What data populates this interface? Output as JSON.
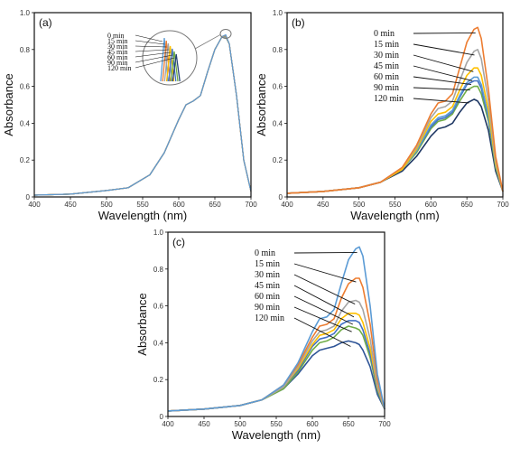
{
  "figure": {
    "panels": [
      {
        "id": "a",
        "label": "(a)"
      },
      {
        "id": "b",
        "label": "(b)"
      },
      {
        "id": "c",
        "label": "(c)"
      }
    ]
  },
  "chart_data": [
    {
      "panel": "(a)",
      "type": "line",
      "xlabel": "Wavelength (nm)",
      "ylabel": "Absorbance",
      "xlim": [
        400,
        700
      ],
      "ylim": [
        0,
        1.0
      ],
      "xticks": [
        400,
        450,
        500,
        550,
        600,
        650,
        700
      ],
      "yticks": [
        0,
        0.2,
        0.4,
        0.6,
        0.8,
        1.0
      ],
      "ytick_labels": [
        "0",
        "0.2",
        "0.4",
        "0.6",
        "0.8",
        "1.0"
      ],
      "grid": false,
      "legend_labels": [
        "0 min",
        "15 min",
        "30 min",
        "45 min",
        "60 min",
        "90 min",
        "120 min"
      ],
      "x": [
        400,
        450,
        500,
        530,
        560,
        580,
        600,
        610,
        620,
        630,
        640,
        650,
        660,
        665,
        670,
        680,
        690,
        700
      ],
      "series": [
        {
          "color": "#5b9bd5",
          "y": [
            0.01,
            0.015,
            0.035,
            0.05,
            0.12,
            0.24,
            0.42,
            0.5,
            0.52,
            0.55,
            0.68,
            0.8,
            0.87,
            0.88,
            0.83,
            0.55,
            0.2,
            0.03
          ]
        },
        {
          "color": "#ed7d31",
          "y": [
            0.01,
            0.015,
            0.035,
            0.05,
            0.12,
            0.24,
            0.42,
            0.5,
            0.52,
            0.55,
            0.68,
            0.8,
            0.87,
            0.878,
            0.83,
            0.55,
            0.2,
            0.03
          ]
        },
        {
          "color": "#a5a5a5",
          "y": [
            0.01,
            0.015,
            0.035,
            0.05,
            0.12,
            0.24,
            0.42,
            0.5,
            0.52,
            0.55,
            0.68,
            0.8,
            0.87,
            0.876,
            0.83,
            0.55,
            0.2,
            0.03
          ]
        },
        {
          "color": "#ffc000",
          "y": [
            0.01,
            0.015,
            0.035,
            0.05,
            0.12,
            0.24,
            0.42,
            0.5,
            0.52,
            0.55,
            0.68,
            0.8,
            0.87,
            0.874,
            0.83,
            0.55,
            0.2,
            0.03
          ]
        },
        {
          "color": "#4472c4",
          "y": [
            0.01,
            0.015,
            0.035,
            0.05,
            0.12,
            0.24,
            0.42,
            0.5,
            0.52,
            0.55,
            0.68,
            0.8,
            0.87,
            0.872,
            0.83,
            0.55,
            0.2,
            0.03
          ]
        },
        {
          "color": "#70ad47",
          "y": [
            0.01,
            0.015,
            0.035,
            0.05,
            0.12,
            0.24,
            0.42,
            0.5,
            0.52,
            0.55,
            0.68,
            0.8,
            0.87,
            0.87,
            0.83,
            0.55,
            0.2,
            0.03
          ]
        },
        {
          "color": "#264478",
          "y": [
            0.01,
            0.015,
            0.035,
            0.05,
            0.12,
            0.24,
            0.42,
            0.5,
            0.52,
            0.55,
            0.68,
            0.8,
            0.87,
            0.868,
            0.83,
            0.55,
            0.2,
            0.03
          ]
        }
      ]
    },
    {
      "panel": "(b)",
      "type": "line",
      "xlabel": "Wavelength (nm)",
      "ylabel": "Absorbance",
      "xlim": [
        400,
        700
      ],
      "ylim": [
        0,
        1.0
      ],
      "xticks": [
        400,
        450,
        500,
        550,
        600,
        650,
        700
      ],
      "yticks": [
        0,
        0.2,
        0.4,
        0.6,
        0.8,
        1.0
      ],
      "ytick_labels": [
        "0",
        "0.2",
        "0.4",
        "0.6",
        "0.8",
        "1.0"
      ],
      "grid": false,
      "legend_labels": [
        "0 min",
        "15 min",
        "30 min",
        "45 min",
        "60 min",
        "90 min",
        "120 min"
      ],
      "x": [
        400,
        450,
        500,
        530,
        560,
        580,
        600,
        610,
        620,
        630,
        640,
        650,
        660,
        665,
        670,
        680,
        690,
        700
      ],
      "series": [
        {
          "color": "#ed7d31",
          "y": [
            0.02,
            0.03,
            0.05,
            0.08,
            0.16,
            0.28,
            0.45,
            0.51,
            0.52,
            0.56,
            0.7,
            0.84,
            0.91,
            0.92,
            0.86,
            0.58,
            0.22,
            0.03
          ]
        },
        {
          "color": "#a5a5a5",
          "y": [
            0.02,
            0.03,
            0.05,
            0.08,
            0.16,
            0.27,
            0.43,
            0.48,
            0.49,
            0.52,
            0.63,
            0.73,
            0.79,
            0.8,
            0.75,
            0.52,
            0.2,
            0.03
          ]
        },
        {
          "color": "#ffc000",
          "y": [
            0.02,
            0.03,
            0.05,
            0.08,
            0.15,
            0.26,
            0.41,
            0.45,
            0.46,
            0.49,
            0.58,
            0.66,
            0.7,
            0.7,
            0.66,
            0.47,
            0.18,
            0.03
          ]
        },
        {
          "color": "#5b9bd5",
          "y": [
            0.02,
            0.03,
            0.05,
            0.08,
            0.15,
            0.25,
            0.39,
            0.43,
            0.44,
            0.47,
            0.55,
            0.62,
            0.65,
            0.65,
            0.61,
            0.44,
            0.17,
            0.03
          ]
        },
        {
          "color": "#4472c4",
          "y": [
            0.02,
            0.03,
            0.05,
            0.08,
            0.15,
            0.25,
            0.38,
            0.42,
            0.43,
            0.46,
            0.54,
            0.61,
            0.63,
            0.63,
            0.59,
            0.43,
            0.17,
            0.03
          ]
        },
        {
          "color": "#70ad47",
          "y": [
            0.02,
            0.03,
            0.05,
            0.08,
            0.15,
            0.24,
            0.37,
            0.41,
            0.42,
            0.45,
            0.52,
            0.58,
            0.6,
            0.6,
            0.56,
            0.41,
            0.16,
            0.03
          ]
        },
        {
          "color": "#1f3864",
          "y": [
            0.02,
            0.03,
            0.05,
            0.08,
            0.14,
            0.22,
            0.33,
            0.37,
            0.38,
            0.4,
            0.46,
            0.51,
            0.53,
            0.52,
            0.49,
            0.36,
            0.14,
            0.03
          ]
        }
      ]
    },
    {
      "panel": "(c)",
      "type": "line",
      "xlabel": "Wavelength (nm)",
      "ylabel": "Absorbance",
      "xlim": [
        400,
        700
      ],
      "ylim": [
        0,
        1.0
      ],
      "xticks": [
        400,
        450,
        500,
        550,
        600,
        650,
        700
      ],
      "yticks": [
        0,
        0.2,
        0.4,
        0.6,
        0.8,
        1.0
      ],
      "ytick_labels": [
        "0",
        "0.2",
        "0.4",
        "0.6",
        "0.8",
        "1.0"
      ],
      "grid": false,
      "legend_labels": [
        "0 min",
        "15 min",
        "30 min",
        "45 min",
        "60 min",
        "90 min",
        "120 min"
      ],
      "x": [
        400,
        450,
        500,
        530,
        560,
        580,
        600,
        610,
        620,
        630,
        640,
        650,
        660,
        665,
        670,
        680,
        690,
        700
      ],
      "series": [
        {
          "color": "#5b9bd5",
          "y": [
            0.03,
            0.04,
            0.06,
            0.09,
            0.17,
            0.29,
            0.46,
            0.53,
            0.54,
            0.58,
            0.72,
            0.85,
            0.91,
            0.92,
            0.87,
            0.6,
            0.23,
            0.04
          ]
        },
        {
          "color": "#ed7d31",
          "y": [
            0.03,
            0.04,
            0.06,
            0.09,
            0.17,
            0.28,
            0.43,
            0.49,
            0.5,
            0.53,
            0.64,
            0.72,
            0.75,
            0.75,
            0.7,
            0.5,
            0.2,
            0.04
          ]
        },
        {
          "color": "#a5a5a5",
          "y": [
            0.03,
            0.04,
            0.06,
            0.09,
            0.16,
            0.27,
            0.41,
            0.46,
            0.47,
            0.49,
            0.57,
            0.62,
            0.63,
            0.62,
            0.58,
            0.42,
            0.17,
            0.04
          ]
        },
        {
          "color": "#ffc000",
          "y": [
            0.03,
            0.04,
            0.06,
            0.09,
            0.16,
            0.26,
            0.39,
            0.44,
            0.45,
            0.47,
            0.53,
            0.56,
            0.56,
            0.55,
            0.51,
            0.37,
            0.16,
            0.04
          ]
        },
        {
          "color": "#4472c4",
          "y": [
            0.03,
            0.04,
            0.06,
            0.09,
            0.16,
            0.25,
            0.38,
            0.42,
            0.43,
            0.45,
            0.5,
            0.52,
            0.52,
            0.51,
            0.47,
            0.34,
            0.15,
            0.04
          ]
        },
        {
          "color": "#70ad47",
          "y": [
            0.03,
            0.04,
            0.06,
            0.09,
            0.15,
            0.24,
            0.36,
            0.4,
            0.41,
            0.43,
            0.47,
            0.49,
            0.48,
            0.47,
            0.44,
            0.32,
            0.14,
            0.04
          ]
        },
        {
          "color": "#2f5597",
          "y": [
            0.03,
            0.04,
            0.06,
            0.09,
            0.15,
            0.23,
            0.33,
            0.36,
            0.37,
            0.38,
            0.4,
            0.41,
            0.4,
            0.39,
            0.36,
            0.27,
            0.12,
            0.04
          ]
        }
      ]
    }
  ]
}
